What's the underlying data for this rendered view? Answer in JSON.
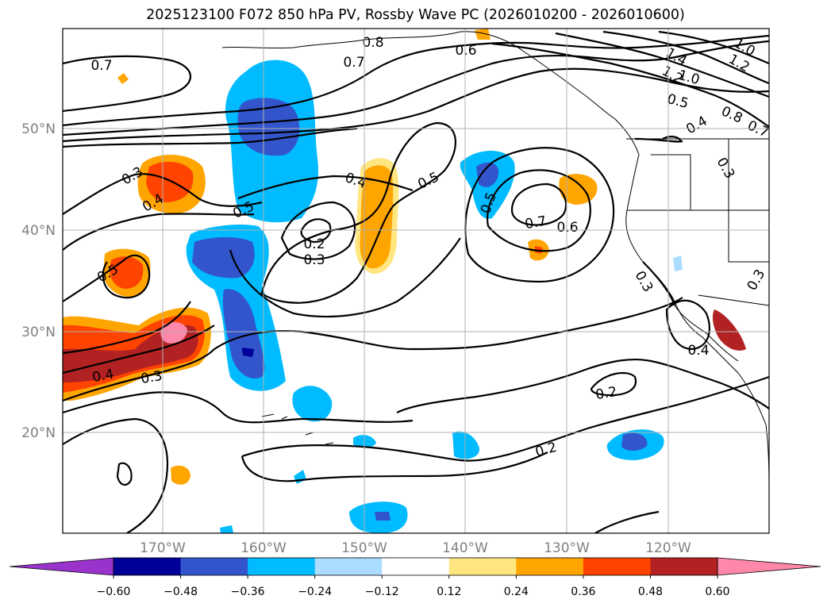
{
  "title": "2025123100 F072 850 hPa PV, Rossby Wave PC (2026010200 - 2026010600)",
  "lat_labels": [
    "50°N",
    "40°N",
    "30°N",
    "20°N"
  ],
  "lon_labels": [
    "170°W",
    "160°W",
    "150°W",
    "140°W",
    "130°W",
    "120°W"
  ],
  "colorbar": {
    "ticks": [
      "−0.60",
      "−0.48",
      "−0.36",
      "−0.24",
      "−0.12",
      "0.12",
      "0.24",
      "0.36",
      "0.48",
      "0.60"
    ],
    "colors": [
      "#9933cc",
      "#000099",
      "#3355cc",
      "#00bbff",
      "#aaddff",
      "#ffffff",
      "#ffe680",
      "#ffa500",
      "#ff4400",
      "#b22222",
      "#ff88aa"
    ]
  },
  "contour_labels": [
    {
      "text": "0.8"
    },
    {
      "text": "0.7"
    },
    {
      "text": "0.7"
    },
    {
      "text": "0.6"
    },
    {
      "text": "1.4"
    },
    {
      "text": "1.2"
    },
    {
      "text": "1.2"
    },
    {
      "text": "1.0"
    },
    {
      "text": "1.0"
    },
    {
      "text": "0.5"
    },
    {
      "text": "0.8"
    },
    {
      "text": "0.7"
    },
    {
      "text": "0.4"
    },
    {
      "text": "0.3"
    },
    {
      "text": "0.4"
    },
    {
      "text": "0.5"
    },
    {
      "text": "0.4"
    },
    {
      "text": "0.5"
    },
    {
      "text": "0.2"
    },
    {
      "text": "0.3"
    },
    {
      "text": "0.5"
    },
    {
      "text": "0.7"
    },
    {
      "text": "0.6"
    },
    {
      "text": "0.5"
    },
    {
      "text": "0.3"
    },
    {
      "text": "0.3"
    },
    {
      "text": "0.4"
    },
    {
      "text": "0.3"
    },
    {
      "text": "0.3"
    },
    {
      "text": "0.4"
    },
    {
      "text": "0.2"
    },
    {
      "text": "0.2"
    }
  ]
}
